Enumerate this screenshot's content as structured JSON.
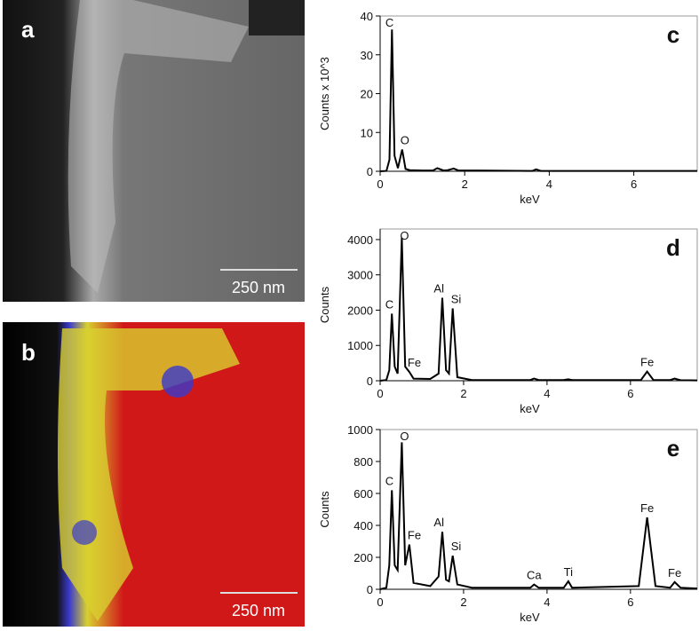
{
  "panels": {
    "a": {
      "label": "a",
      "scale_bar": "250 nm"
    },
    "b": {
      "label": "b",
      "scale_bar": "250 nm"
    }
  },
  "chart_data": [
    {
      "type": "line",
      "panel_label": "c",
      "xlabel": "keV",
      "ylabel": "Counts x 10^3",
      "xlim": [
        0,
        7.5
      ],
      "ylim": [
        0,
        40
      ],
      "xticks": [
        0,
        2,
        4,
        6
      ],
      "yticks": [
        0,
        10,
        20,
        30,
        40
      ],
      "color": "#000000",
      "x": [
        0,
        0.15,
        0.22,
        0.28,
        0.34,
        0.42,
        0.52,
        0.6,
        0.7,
        1.0,
        1.25,
        1.35,
        1.5,
        1.6,
        1.74,
        1.85,
        2.3,
        3.6,
        3.69,
        3.8,
        7.5
      ],
      "values": [
        0,
        0.1,
        3,
        36.5,
        4,
        0.8,
        5.6,
        0.6,
        0.3,
        0.2,
        0.2,
        0.8,
        0.2,
        0.3,
        0.7,
        0.2,
        0.2,
        0.1,
        0.5,
        0.1,
        0.1
      ],
      "annotations": [
        {
          "text": "C",
          "x": 0.28
        },
        {
          "text": "O",
          "x": 0.52
        }
      ]
    },
    {
      "type": "line",
      "panel_label": "d",
      "xlabel": "keV",
      "ylabel": "Counts",
      "xlim": [
        0,
        7.6
      ],
      "ylim": [
        0,
        4300
      ],
      "xticks": [
        0,
        2,
        4,
        6
      ],
      "yticks": [
        0,
        1000,
        2000,
        3000,
        4000
      ],
      "color": "#000000",
      "x": [
        0,
        0.15,
        0.22,
        0.28,
        0.35,
        0.42,
        0.52,
        0.6,
        0.7,
        0.8,
        1.2,
        1.4,
        1.49,
        1.58,
        1.65,
        1.74,
        1.85,
        2.2,
        3.6,
        3.69,
        3.8,
        4.4,
        4.51,
        4.6,
        6.25,
        6.4,
        6.55,
        6.95,
        7.06,
        7.2,
        7.6
      ],
      "values": [
        0,
        20,
        300,
        1900,
        400,
        200,
        4050,
        400,
        250,
        60,
        50,
        200,
        2350,
        300,
        200,
        2050,
        100,
        20,
        20,
        60,
        20,
        20,
        40,
        20,
        20,
        260,
        20,
        20,
        60,
        15,
        10
      ],
      "annotations": [
        {
          "text": "C",
          "x": 0.28
        },
        {
          "text": "O",
          "x": 0.52
        },
        {
          "text": "Fe",
          "x": 0.7
        },
        {
          "text": "Al",
          "x": 1.49
        },
        {
          "text": "Si",
          "x": 1.74
        },
        {
          "text": "Fe",
          "x": 6.4
        }
      ]
    },
    {
      "type": "line",
      "panel_label": "e",
      "xlabel": "keV",
      "ylabel": "Counts",
      "xlim": [
        0,
        7.6
      ],
      "ylim": [
        0,
        1000
      ],
      "xticks": [
        0,
        2,
        4,
        6
      ],
      "yticks": [
        0,
        200,
        400,
        600,
        800,
        1000
      ],
      "color": "#000000",
      "x": [
        0,
        0.15,
        0.22,
        0.28,
        0.35,
        0.42,
        0.52,
        0.6,
        0.7,
        0.8,
        1.2,
        1.4,
        1.49,
        1.58,
        1.65,
        1.74,
        1.85,
        2.2,
        3.6,
        3.69,
        3.8,
        4.4,
        4.51,
        4.6,
        6.2,
        6.4,
        6.6,
        6.95,
        7.06,
        7.2,
        7.6
      ],
      "values": [
        0,
        10,
        150,
        620,
        150,
        120,
        920,
        150,
        280,
        40,
        20,
        80,
        360,
        60,
        50,
        210,
        30,
        10,
        10,
        30,
        10,
        10,
        50,
        10,
        20,
        450,
        20,
        10,
        45,
        10,
        5
      ],
      "annotations": [
        {
          "text": "C",
          "x": 0.28
        },
        {
          "text": "O",
          "x": 0.52
        },
        {
          "text": "Fe",
          "x": 0.7
        },
        {
          "text": "Al",
          "x": 1.49
        },
        {
          "text": "Si",
          "x": 1.74
        },
        {
          "text": "Ca",
          "x": 3.69
        },
        {
          "text": "Ti",
          "x": 4.51
        },
        {
          "text": "Fe",
          "x": 6.4
        },
        {
          "text": "Fe",
          "x": 7.06
        }
      ]
    }
  ]
}
